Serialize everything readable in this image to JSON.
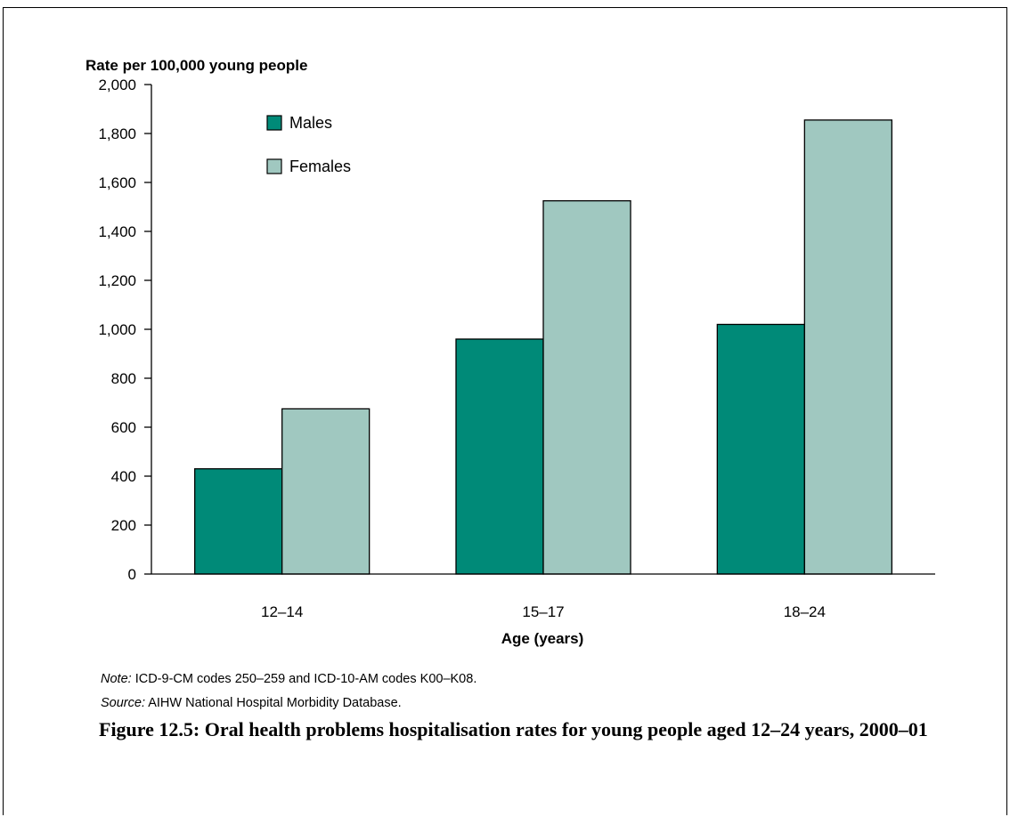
{
  "chart_data": {
    "type": "bar",
    "ylabel": "Rate per 100,000 young people",
    "xlabel": "Age (years)",
    "categories": [
      "12–14",
      "15–17",
      "18–24"
    ],
    "ylim": [
      0,
      2000
    ],
    "yticks": [
      0,
      200,
      400,
      600,
      800,
      1000,
      1200,
      1400,
      1600,
      1800,
      2000
    ],
    "ytick_labels": [
      "0",
      "200",
      "400",
      "600",
      "800",
      "1,000",
      "1,200",
      "1,400",
      "1,600",
      "1,800",
      "2,000"
    ],
    "grid": false,
    "legend_position": "top-left",
    "series": [
      {
        "name": "Males",
        "color": "#008a78",
        "values": [
          430,
          960,
          1020
        ]
      },
      {
        "name": "Females",
        "color": "#a0c8c0",
        "values": [
          675,
          1525,
          1855
        ]
      }
    ]
  },
  "note": {
    "label": "Note:",
    "text": " ICD-9-CM codes 250–259 and ICD-10-AM codes K00–K08."
  },
  "source": {
    "label": "Source:",
    "text": " AIHW National Hospital Morbidity Database."
  },
  "caption": "Figure 12.5: Oral health problems hospitalisation rates for young people aged 12–24 years, 2000–01"
}
